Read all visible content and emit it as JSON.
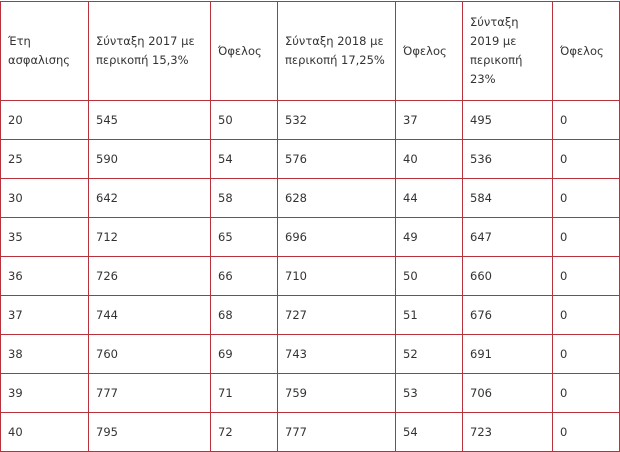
{
  "headers": [
    "Έτη ασφαλισης",
    "Σύνταξη 2017 με περικοπή 15,3%",
    "Όφελος",
    "Σύνταξη 2018 με περικοπή 17,25%",
    "Όφελος",
    "Σύνταξη 2019 με περικοπή 23%",
    "Όφελος"
  ],
  "rows": [
    [
      "20",
      "545",
      "50",
      "532",
      "37",
      "495",
      "0"
    ],
    [
      "25",
      "590",
      "54",
      "576",
      "40",
      "536",
      "0"
    ],
    [
      "30",
      "642",
      "58",
      "628",
      "44",
      "584",
      "0"
    ],
    [
      "35",
      "712",
      "65",
      "696",
      "49",
      "647",
      "0"
    ],
    [
      "36",
      "726",
      "66",
      "710",
      "50",
      "660",
      "0"
    ],
    [
      "37",
      "744",
      "68",
      "727",
      "51",
      "676",
      "0"
    ],
    [
      "38",
      "760",
      "69",
      "743",
      "52",
      "691",
      "0"
    ],
    [
      "39",
      "777",
      "71",
      "759",
      "53",
      "706",
      "0"
    ],
    [
      "40",
      "795",
      "72",
      "777",
      "54",
      "723",
      "0"
    ]
  ],
  "colors": {
    "border": "#b8323c",
    "text": "#333333"
  }
}
